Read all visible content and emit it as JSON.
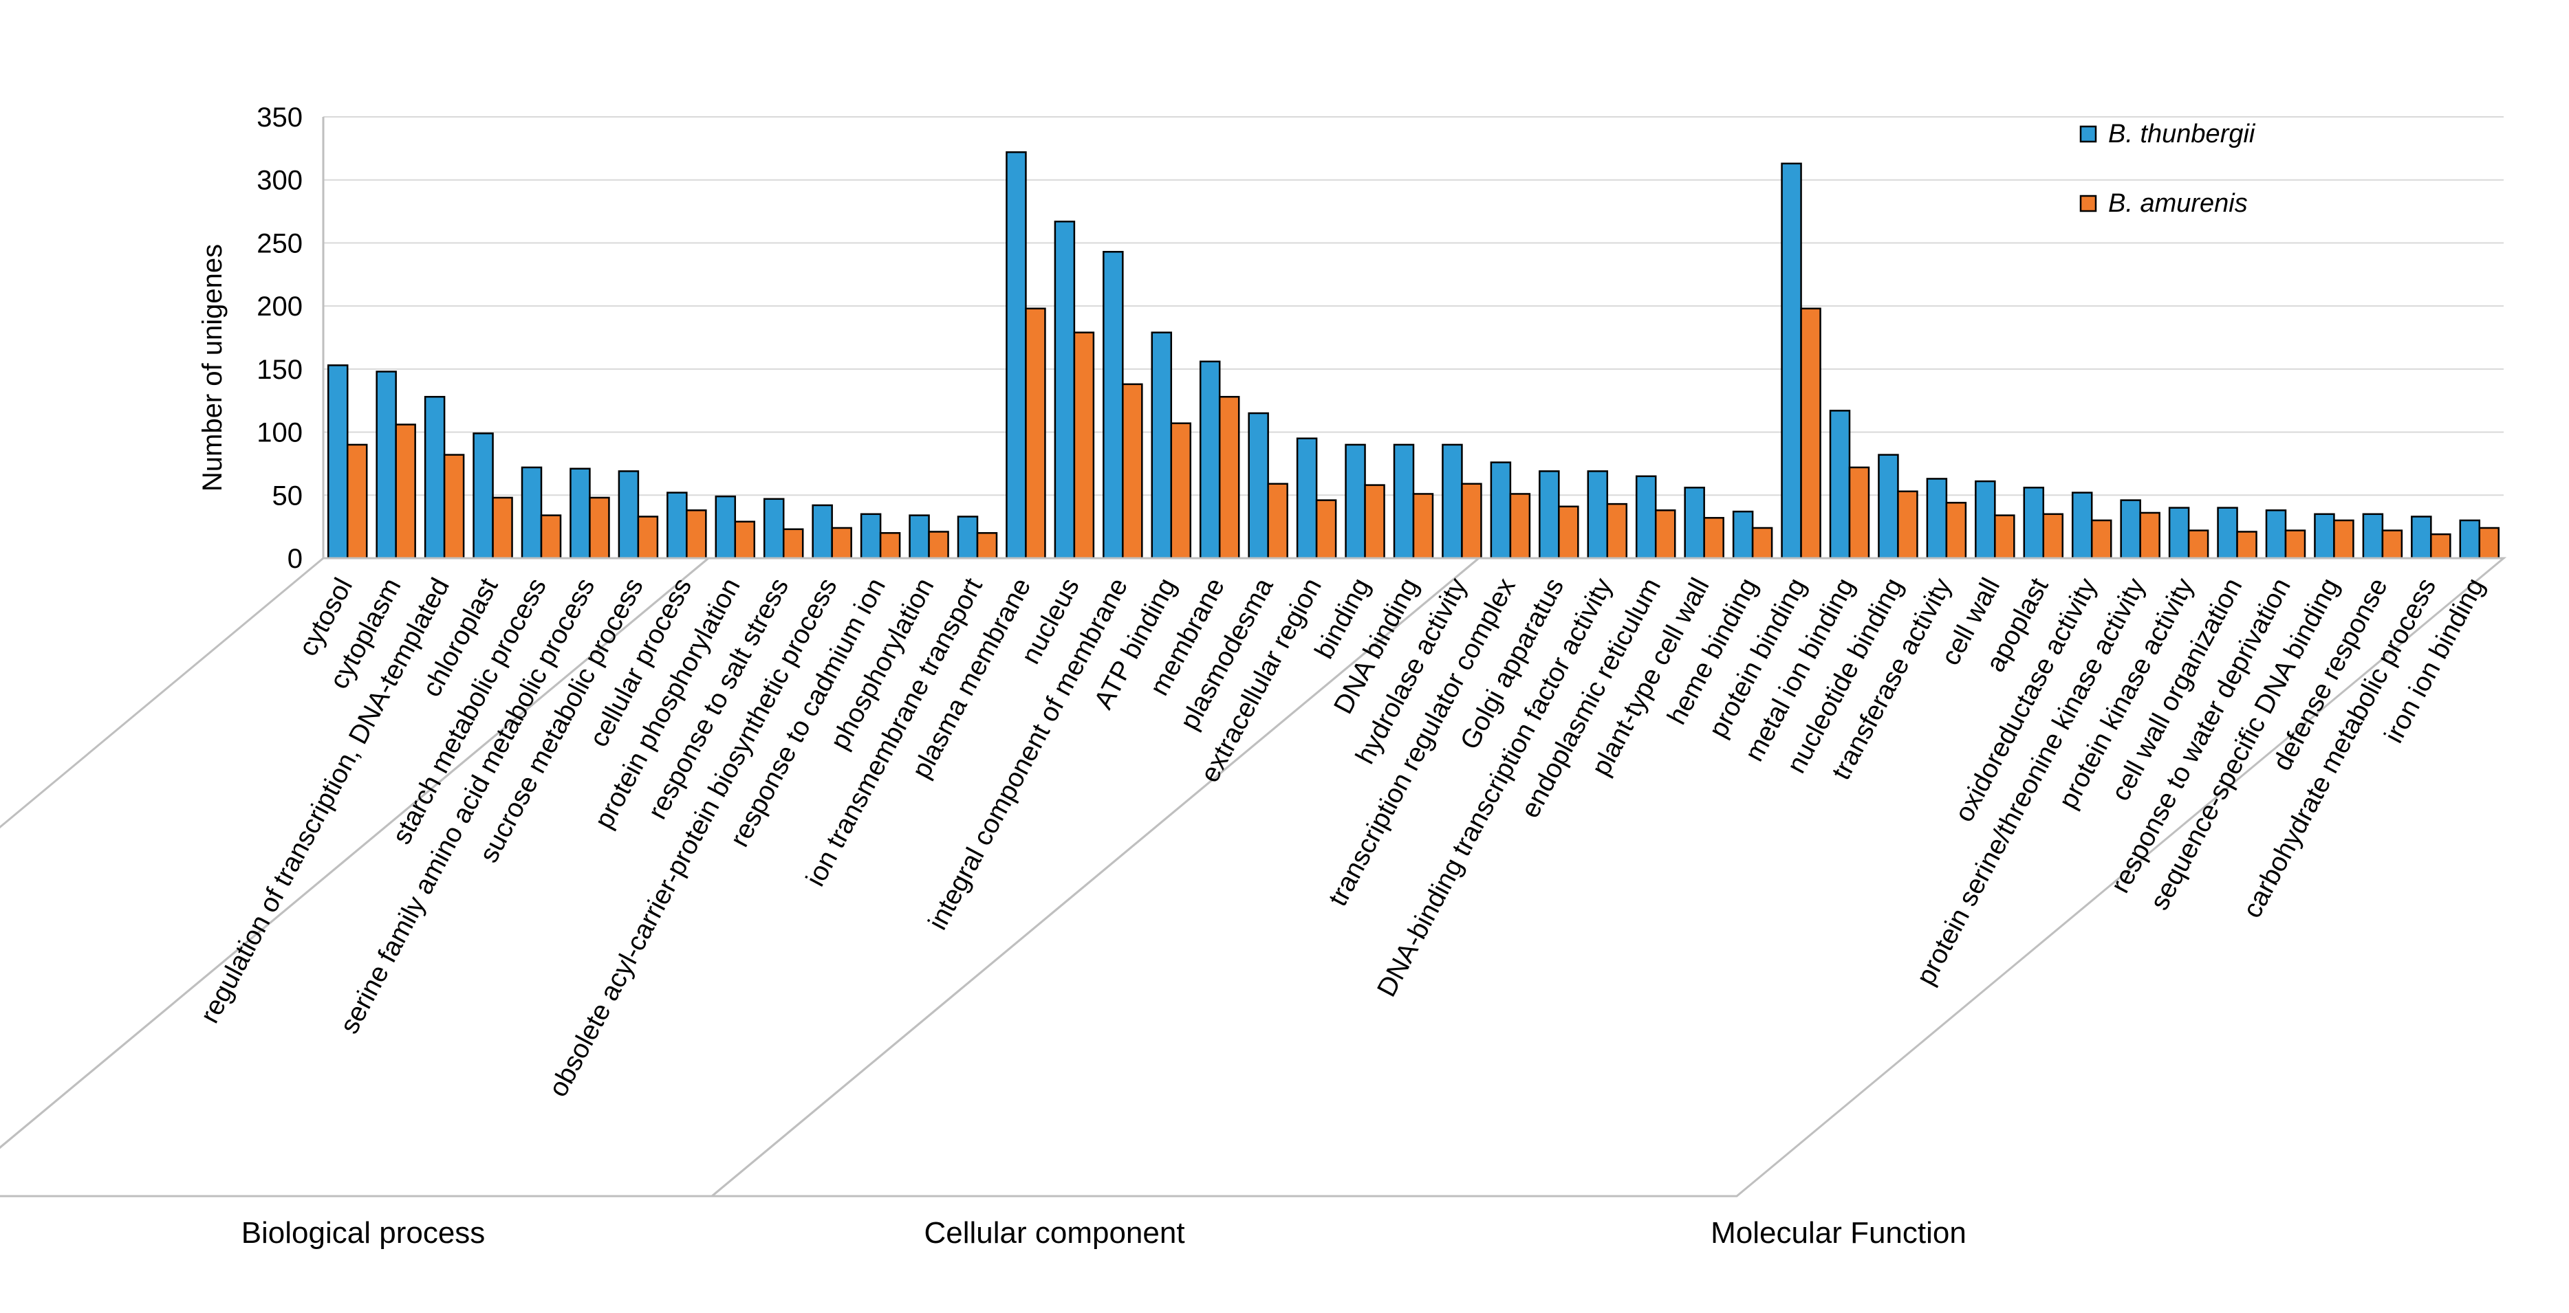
{
  "chart_data": {
    "type": "bar",
    "title": "",
    "xlabel": "",
    "ylabel": "Number of unigenes",
    "ylim": [
      0,
      350
    ],
    "yticks": [
      0,
      50,
      100,
      150,
      200,
      250,
      300,
      350
    ],
    "grid": true,
    "legend_position": "top-right",
    "colors": {
      "B. thunbergii": "#2e9bd6",
      "B. amurenis": "#f07c2c"
    },
    "categories": [
      "cytosol",
      "cytoplasm",
      "regulation of transcription, DNA-templated",
      "chloroplast",
      "starch metabolic process",
      "serine family amino acid metabolic process",
      "sucrose metabolic process",
      "cellular process",
      "protein phosphorylation",
      "response to salt stress",
      "obsolete acyl-carrier-protein biosynthetic process",
      "response to cadmium ion",
      "phosphorylation",
      "ion transmembrane transport",
      "plasma membrane",
      "nucleus",
      "integral component of membrane",
      "ATP binding",
      "membrane",
      "plasmodesma",
      "extracellular region",
      "binding",
      "DNA binding",
      "hydrolase activity",
      "transcription regulator complex",
      "Golgi apparatus",
      "DNA-binding transcription factor activity",
      "endoplasmic reticulum",
      "plant-type cell wall",
      "heme binding",
      "protein binding",
      "metal ion binding",
      "nucleotide binding",
      "transferase activity",
      "cell wall",
      "apoplast",
      "oxidoreductase activity",
      "protein serine/threonine kinase activity",
      "protein kinase activity",
      "cell wall organization",
      "response to water deprivation",
      "sequence-specific DNA binding",
      "defense response",
      "carbohydrate metabolic process",
      "iron ion binding"
    ],
    "series": [
      {
        "name": "B. thunbergii",
        "values": [
          153,
          148,
          128,
          99,
          72,
          71,
          69,
          52,
          49,
          47,
          42,
          35,
          34,
          33,
          322,
          267,
          243,
          179,
          156,
          115,
          95,
          90,
          90,
          90,
          76,
          69,
          69,
          65,
          56,
          37,
          313,
          117,
          82,
          63,
          61,
          56,
          52,
          46,
          40,
          40,
          38,
          35,
          35,
          33,
          30
        ]
      },
      {
        "name": "B. amurenis",
        "values": [
          90,
          106,
          82,
          48,
          34,
          48,
          33,
          38,
          29,
          23,
          24,
          20,
          21,
          20,
          198,
          179,
          138,
          107,
          128,
          59,
          46,
          58,
          51,
          59,
          51,
          41,
          43,
          38,
          32,
          24,
          198,
          72,
          53,
          44,
          34,
          35,
          30,
          36,
          22,
          21,
          22,
          30,
          22,
          19,
          24
        ]
      }
    ],
    "groups": [
      {
        "label": "Biological process",
        "start": 0,
        "end": 13
      },
      {
        "label": "Cellular component",
        "start": 14,
        "end": 29
      },
      {
        "label": "Molecular Function",
        "start": 30,
        "end": 44
      }
    ]
  }
}
